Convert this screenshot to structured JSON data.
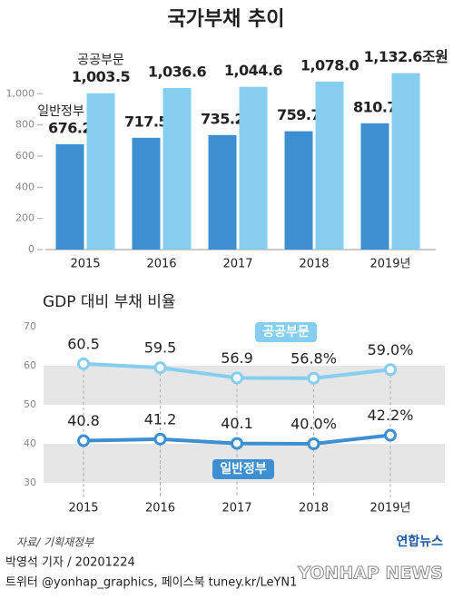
{
  "title": "국가부채 추이",
  "chart_data": [
    {
      "type": "bar",
      "categories": [
        "2015",
        "2016",
        "2017",
        "2018",
        "2019년"
      ],
      "series": [
        {
          "name": "일반정부",
          "color": "#3d8fd1",
          "values": [
            676.2,
            717.5,
            735.2,
            759.7,
            810.7
          ]
        },
        {
          "name": "공공부문",
          "color": "#86cdf0",
          "values": [
            1003.5,
            1036.6,
            1044.6,
            1078.0,
            1132.6
          ],
          "value_labels": [
            "1,003.5",
            "1,036.6",
            "1,044.6",
            "1,078.0",
            "1,132.6조원"
          ]
        }
      ],
      "ylim": [
        0,
        1200
      ],
      "yticks": [
        0,
        200,
        400,
        600,
        800,
        {
          "value": 1000,
          "label": "1,000"
        }
      ]
    },
    {
      "type": "line",
      "title": "GDP 대비 부채 비율",
      "categories": [
        "2015",
        "2016",
        "2017",
        "2018",
        "2019년"
      ],
      "series": [
        {
          "name": "공공부문",
          "color": "#86cdf0",
          "values": [
            60.5,
            59.5,
            56.9,
            56.8,
            59.0
          ],
          "value_labels": [
            "60.5",
            "59.5",
            "56.9",
            "56.8%",
            "59.0%"
          ]
        },
        {
          "name": "일반정부",
          "color": "#3d8fd1",
          "values": [
            40.8,
            41.2,
            40.1,
            40.0,
            42.2
          ],
          "value_labels": [
            "40.8",
            "41.2",
            "40.1",
            "40.0%",
            "42.2%"
          ]
        }
      ],
      "ylim": [
        30,
        70
      ],
      "yticks": [
        30,
        40,
        50,
        60,
        70
      ],
      "grid_bands": true
    }
  ],
  "footer": {
    "source": "자료/ 기획재정부",
    "credit": "박영석 기자 /  20201224",
    "social": "트위터 @yonhap_graphics, 페이스북 tuney.kr/LeYN1",
    "logo": "연합뉴스",
    "watermark": "YONHAP NEWS"
  }
}
